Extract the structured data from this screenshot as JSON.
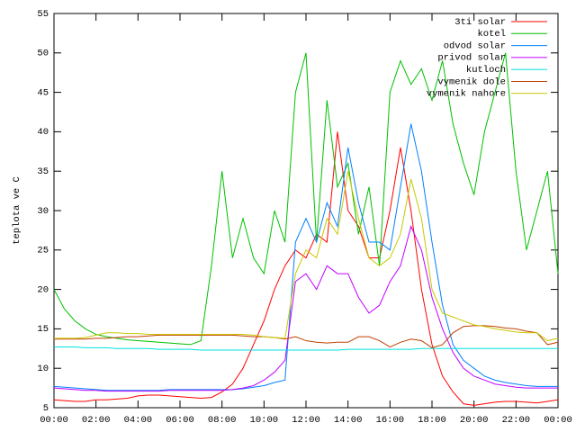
{
  "chart_data": {
    "type": "line",
    "y_label": "teplota ve C",
    "x": [
      0,
      0.5,
      1,
      1.5,
      2,
      2.5,
      3,
      3.5,
      4,
      4.5,
      5,
      5.5,
      6,
      6.5,
      7,
      7.5,
      8,
      8.5,
      9,
      9.5,
      10,
      10.5,
      11,
      11.5,
      12,
      12.5,
      13,
      13.5,
      14,
      14.5,
      15,
      15.5,
      16,
      16.5,
      17,
      17.5,
      18,
      18.5,
      19,
      19.5,
      20,
      20.5,
      21,
      21.5,
      22,
      22.5,
      23,
      23.5,
      24
    ],
    "xlim": [
      0,
      24
    ],
    "xticks": [
      {
        "value": 0,
        "label": "00:00"
      },
      {
        "value": 2,
        "label": "02:00"
      },
      {
        "value": 4,
        "label": "04:00"
      },
      {
        "value": 6,
        "label": "06:00"
      },
      {
        "value": 8,
        "label": "08:00"
      },
      {
        "value": 10,
        "label": "10:00"
      },
      {
        "value": 12,
        "label": "12:00"
      },
      {
        "value": 14,
        "label": "14:00"
      },
      {
        "value": 16,
        "label": "16:00"
      },
      {
        "value": 18,
        "label": "18:00"
      },
      {
        "value": 20,
        "label": "20:00"
      },
      {
        "value": 22,
        "label": "22:00"
      },
      {
        "value": 24,
        "label": "00:00"
      }
    ],
    "ylim": [
      5,
      55
    ],
    "yticks": [
      5,
      10,
      15,
      20,
      25,
      30,
      35,
      40,
      45,
      50,
      55
    ],
    "grid": false,
    "legend": "top-right",
    "series": [
      {
        "name": "3ti solar",
        "color": "#ff0000",
        "values": [
          6,
          5.9,
          5.8,
          5.8,
          6,
          6,
          6.1,
          6.2,
          6.5,
          6.6,
          6.6,
          6.5,
          6.4,
          6.3,
          6.2,
          6.3,
          7,
          8,
          10,
          13,
          16,
          20,
          23,
          25,
          24,
          27,
          26,
          40,
          30,
          28,
          24,
          24,
          30,
          38,
          30,
          20,
          13,
          9,
          7,
          5.5,
          5.3,
          5.5,
          5.7,
          5.8,
          5.8,
          5.7,
          5.6,
          5.8,
          6
        ]
      },
      {
        "name": "kotel",
        "color": "#00c000",
        "values": [
          20,
          17.5,
          16,
          15,
          14.3,
          14,
          13.8,
          13.6,
          13.5,
          13.4,
          13.3,
          13.2,
          13.1,
          13,
          13.5,
          23,
          35,
          24,
          29,
          24,
          22,
          30,
          26,
          45,
          50,
          26,
          44,
          33,
          36,
          27,
          33,
          23,
          45,
          49,
          46,
          48,
          44,
          49,
          41,
          36,
          32,
          40,
          45,
          50,
          35,
          25,
          30,
          35,
          22
        ]
      },
      {
        "name": "odvod solar",
        "color": "#0080ff",
        "values": [
          7.7,
          7.6,
          7.5,
          7.4,
          7.3,
          7.2,
          7.2,
          7.2,
          7.2,
          7.2,
          7.2,
          7.3,
          7.3,
          7.3,
          7.3,
          7.3,
          7.3,
          7.3,
          7.4,
          7.6,
          7.8,
          8.2,
          8.5,
          26,
          29,
          26,
          31,
          28,
          38,
          31,
          26,
          26,
          25,
          33,
          41,
          35,
          26,
          18,
          13,
          11,
          10,
          9,
          8.5,
          8.2,
          8,
          7.8,
          7.7,
          7.7,
          7.7
        ]
      },
      {
        "name": "privod solar",
        "color": "#c000ff",
        "values": [
          7.5,
          7.4,
          7.3,
          7.2,
          7.2,
          7.1,
          7.1,
          7.1,
          7.1,
          7.1,
          7.1,
          7.2,
          7.2,
          7.2,
          7.2,
          7.2,
          7.2,
          7.3,
          7.5,
          7.8,
          8.5,
          9.5,
          11,
          21,
          22,
          20,
          23,
          22,
          22,
          19,
          17,
          18,
          21,
          23,
          28,
          25,
          19,
          15,
          12,
          10,
          9,
          8.5,
          8,
          7.8,
          7.6,
          7.5,
          7.5,
          7.5,
          7.5
        ]
      },
      {
        "name": "kutloch",
        "color": "#00e0e0",
        "values": [
          12.7,
          12.7,
          12.7,
          12.6,
          12.6,
          12.6,
          12.5,
          12.5,
          12.5,
          12.5,
          12.4,
          12.4,
          12.4,
          12.4,
          12.3,
          12.3,
          12.3,
          12.3,
          12.3,
          12.3,
          12.3,
          12.3,
          12.3,
          12.3,
          12.3,
          12.3,
          12.3,
          12.3,
          12.4,
          12.4,
          12.4,
          12.4,
          12.4,
          12.4,
          12.4,
          12.5,
          12.5,
          12.5,
          12.5,
          12.5,
          12.5,
          12.5,
          12.5,
          12.5,
          12.5,
          12.5,
          12.5,
          12.5,
          12.5
        ]
      },
      {
        "name": "vymenik dole",
        "color": "#c04000",
        "values": [
          13.7,
          13.7,
          13.7,
          13.7,
          13.8,
          13.8,
          13.9,
          14,
          14,
          14.1,
          14.2,
          14.2,
          14.2,
          14.2,
          14.2,
          14.2,
          14.2,
          14.2,
          14.1,
          14,
          14,
          13.9,
          13.7,
          14,
          13.5,
          13.3,
          13.2,
          13.3,
          13.3,
          14,
          14,
          13.5,
          12.7,
          13.3,
          13.7,
          13.5,
          12.6,
          13,
          14.5,
          15.3,
          15.4,
          15.4,
          15.3,
          15.1,
          15,
          14.7,
          14.5,
          13,
          13.3
        ]
      },
      {
        "name": "vymenik nahore",
        "color": "#c8c800",
        "values": [
          13.8,
          13.8,
          13.8,
          13.9,
          14.2,
          14.5,
          14.5,
          14.4,
          14.4,
          14.3,
          14.3,
          14.3,
          14.3,
          14.3,
          14.3,
          14.3,
          14.3,
          14.3,
          14.3,
          14.2,
          14,
          13.9,
          13.8,
          22,
          25,
          24,
          29,
          27,
          35,
          29,
          24,
          23,
          24,
          27,
          34,
          29,
          20,
          17,
          16.5,
          16,
          15.5,
          15.3,
          15,
          14.8,
          14.6,
          14.5,
          14.5,
          13.5,
          13.8
        ]
      }
    ]
  }
}
